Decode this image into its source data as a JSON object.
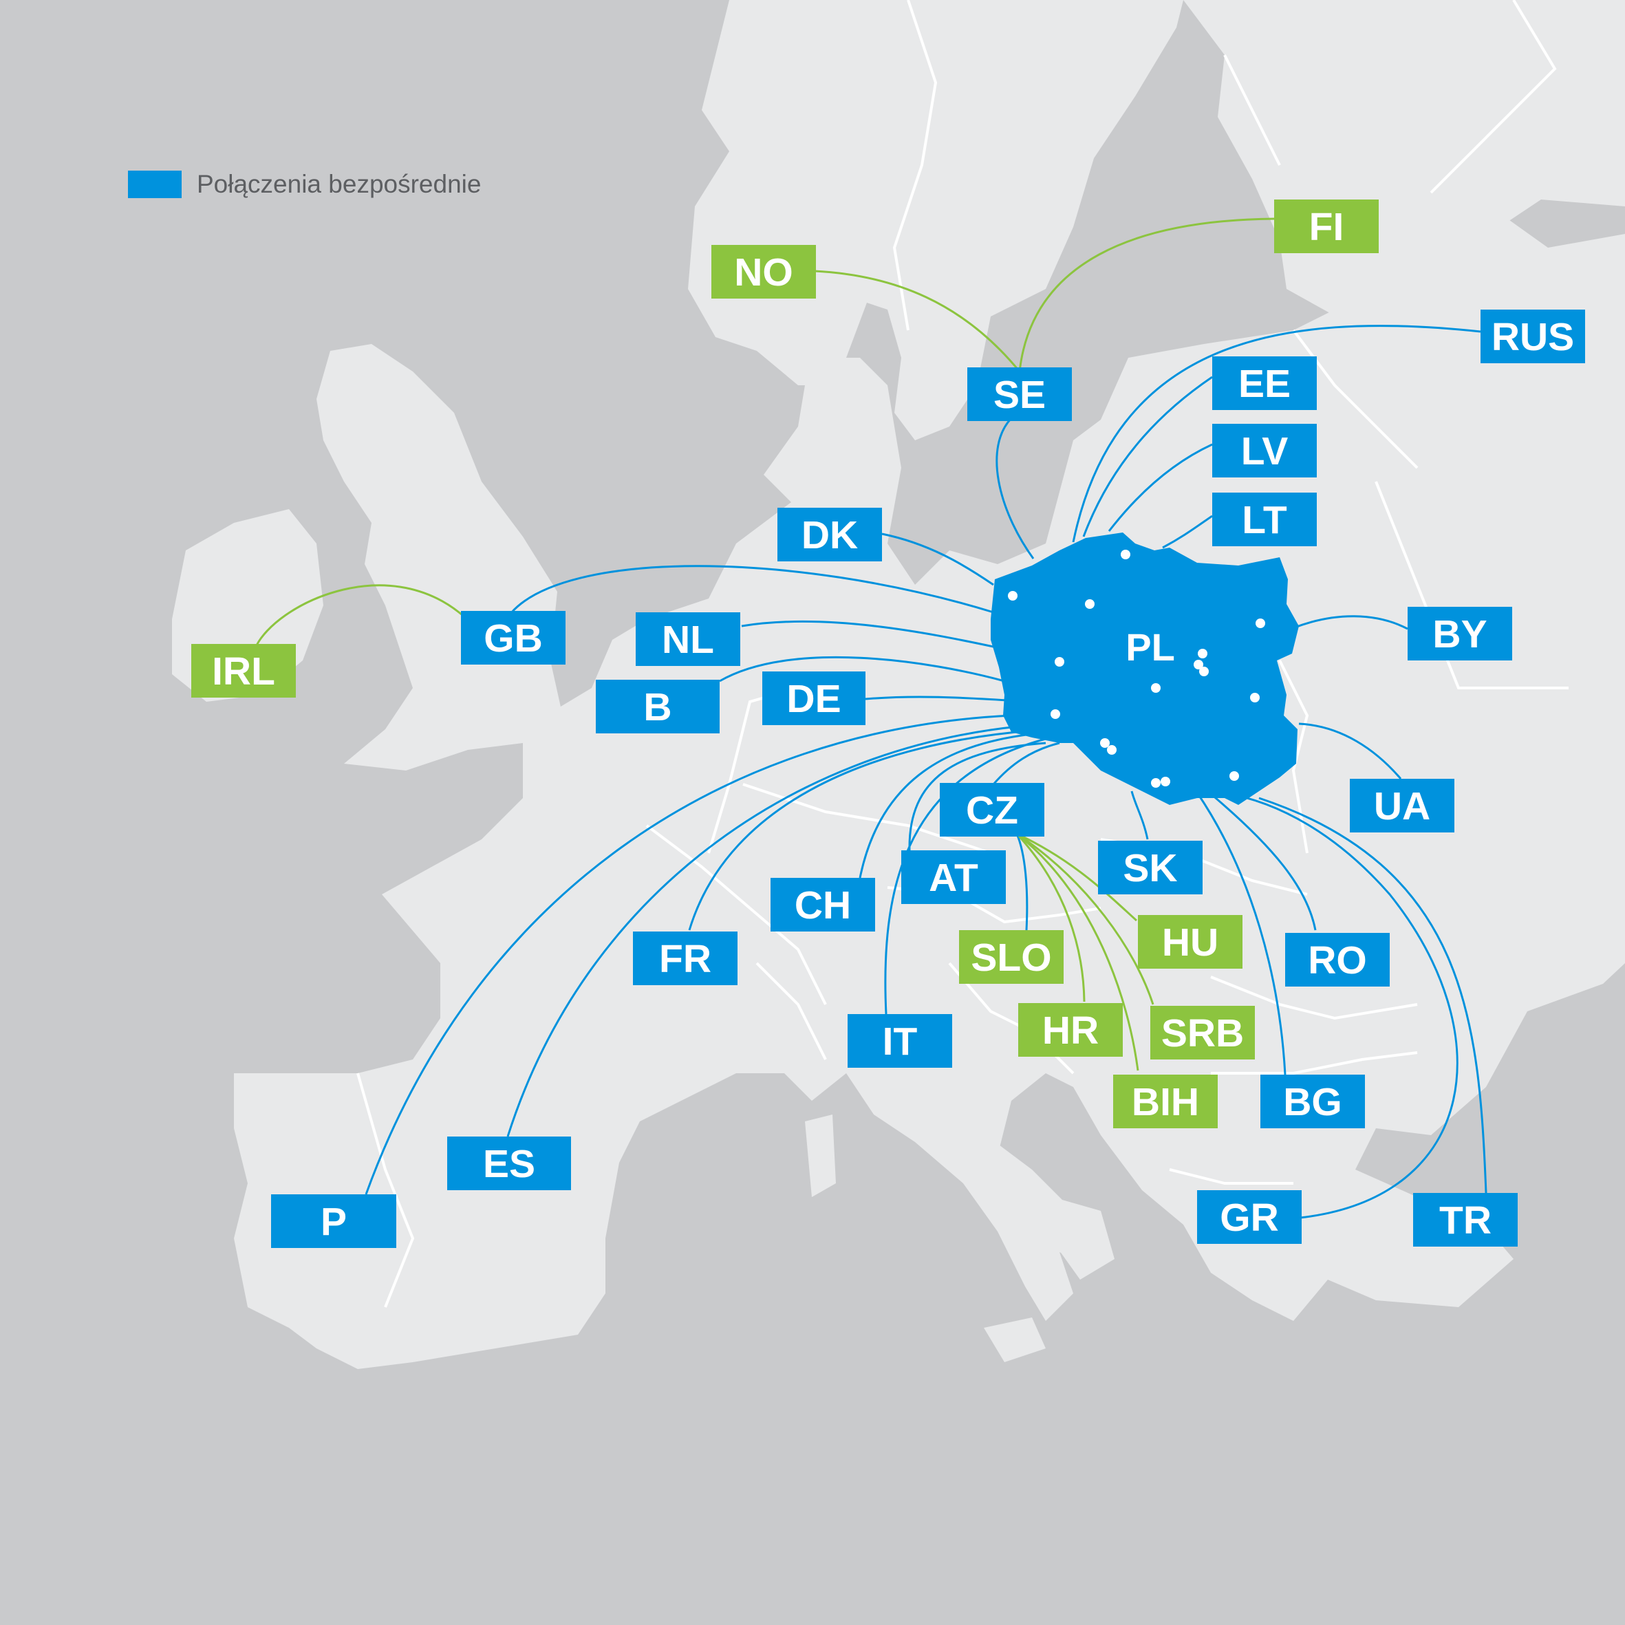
{
  "legend": {
    "label": "Połączenia bezpośrednie",
    "color": "#0092dd"
  },
  "colors": {
    "direct": "#0092dd",
    "indirect": "#8cc43f",
    "sea": "#c9cacc",
    "land": "#e8e9ea",
    "border": "#ffffff"
  },
  "hub": {
    "code": "PL"
  },
  "countries": [
    {
      "code": "NO",
      "type": "indirect"
    },
    {
      "code": "FI",
      "type": "indirect"
    },
    {
      "code": "SE",
      "type": "direct"
    },
    {
      "code": "RUS",
      "type": "direct"
    },
    {
      "code": "EE",
      "type": "direct"
    },
    {
      "code": "LV",
      "type": "direct"
    },
    {
      "code": "LT",
      "type": "direct"
    },
    {
      "code": "DK",
      "type": "direct"
    },
    {
      "code": "GB",
      "type": "direct"
    },
    {
      "code": "IRL",
      "type": "indirect"
    },
    {
      "code": "NL",
      "type": "direct"
    },
    {
      "code": "B",
      "type": "direct"
    },
    {
      "code": "DE",
      "type": "direct"
    },
    {
      "code": "BY",
      "type": "direct"
    },
    {
      "code": "UA",
      "type": "direct"
    },
    {
      "code": "CZ",
      "type": "direct"
    },
    {
      "code": "SK",
      "type": "direct"
    },
    {
      "code": "AT",
      "type": "direct"
    },
    {
      "code": "CH",
      "type": "direct"
    },
    {
      "code": "HU",
      "type": "indirect"
    },
    {
      "code": "SLO",
      "type": "indirect"
    },
    {
      "code": "RO",
      "type": "direct"
    },
    {
      "code": "FR",
      "type": "direct"
    },
    {
      "code": "HR",
      "type": "indirect"
    },
    {
      "code": "SRB",
      "type": "indirect"
    },
    {
      "code": "IT",
      "type": "direct"
    },
    {
      "code": "BIH",
      "type": "indirect"
    },
    {
      "code": "BG",
      "type": "direct"
    },
    {
      "code": "ES",
      "type": "direct"
    },
    {
      "code": "P",
      "type": "direct"
    },
    {
      "code": "GR",
      "type": "direct"
    },
    {
      "code": "TR",
      "type": "direct"
    }
  ]
}
